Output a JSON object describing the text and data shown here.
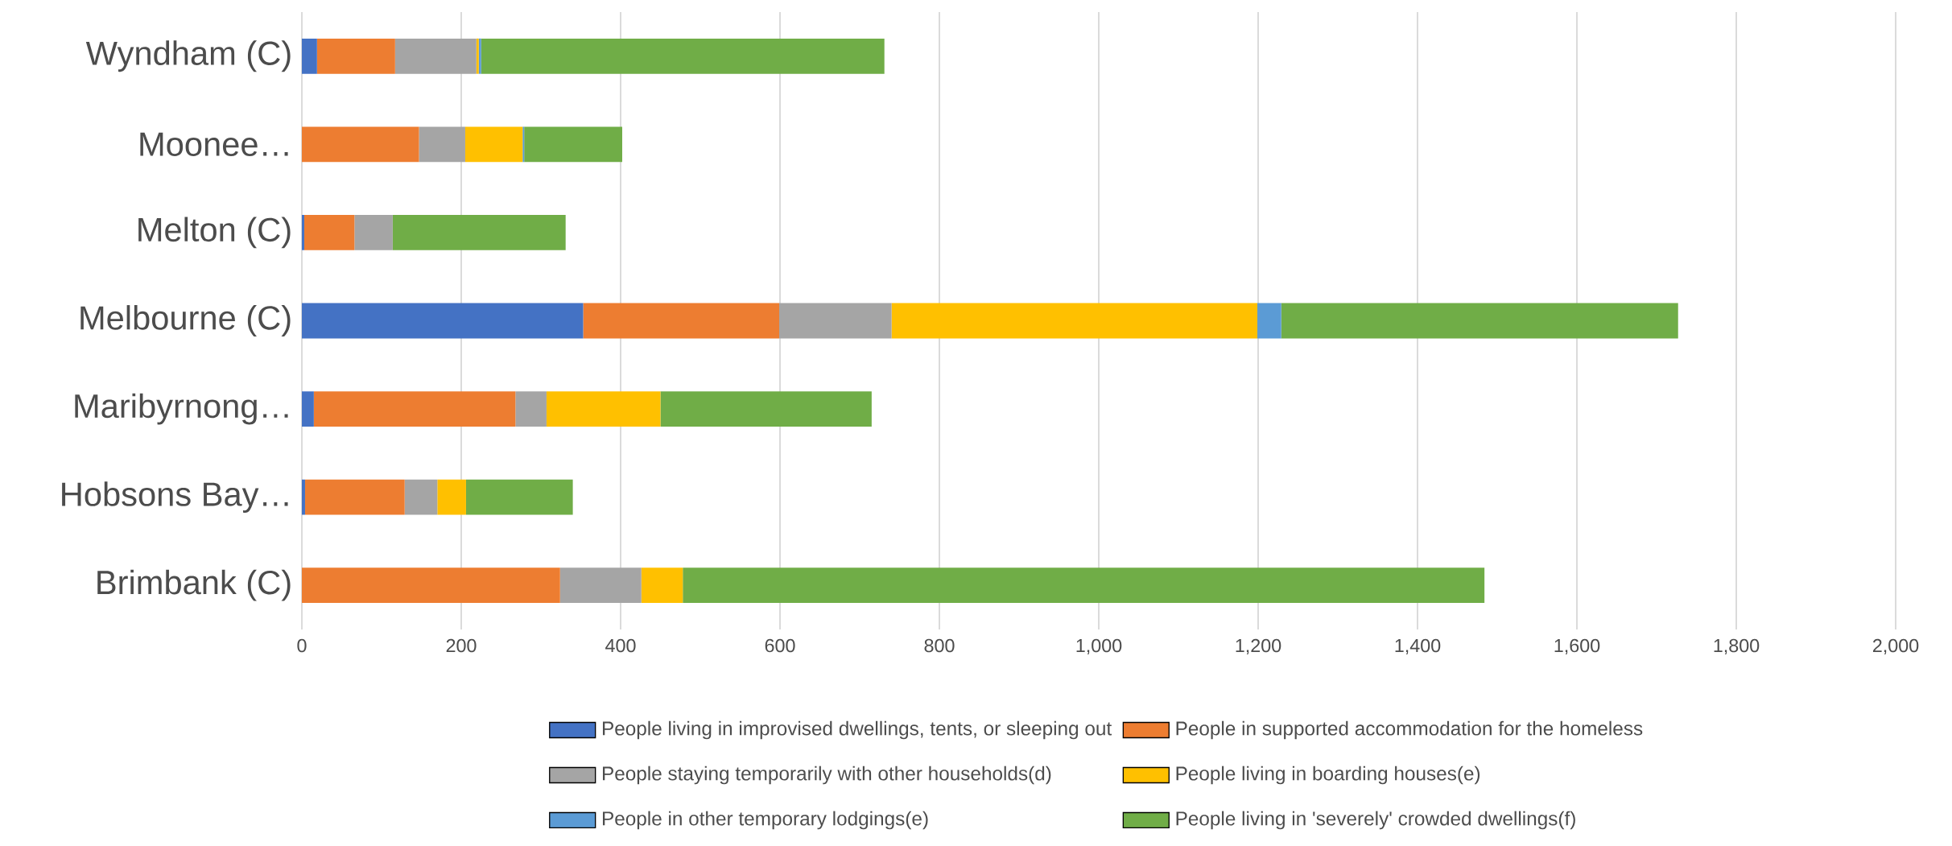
{
  "chart_data": {
    "type": "bar",
    "orientation": "horizontal",
    "stacked": true,
    "categories": [
      "Wyndham (C)",
      "Moonee…",
      "Melton (C)",
      "Melbourne (C)",
      "Maribyrnong…",
      "Hobsons Bay…",
      "Brimbank (C)"
    ],
    "series": [
      {
        "name": "People living in improvised dwellings, tents, or sleeping out",
        "color": "#4472c4",
        "values": [
          19,
          0,
          3,
          353,
          15,
          4,
          0
        ]
      },
      {
        "name": "People in supported accommodation for the homeless",
        "color": "#ed7d31",
        "values": [
          98,
          147,
          63,
          246,
          253,
          125,
          324
        ]
      },
      {
        "name": "People staying temporarily with other households(d)",
        "color": "#a5a5a5",
        "values": [
          102,
          58,
          48,
          141,
          39,
          41,
          102
        ]
      },
      {
        "name": "People living in boarding houses(e)",
        "color": "#ffc000",
        "values": [
          3,
          72,
          0,
          459,
          143,
          36,
          52
        ]
      },
      {
        "name": "People in other temporary lodgings(e)",
        "color": "#5b9bd5",
        "values": [
          3,
          2,
          0,
          30,
          0,
          0,
          0
        ]
      },
      {
        "name": "People living in 'severely' crowded dwellings(f)",
        "color": "#70ad47",
        "values": [
          506,
          123,
          217,
          498,
          265,
          134,
          1006
        ]
      }
    ],
    "xlim": [
      0,
      2000
    ],
    "xticks": [
      0,
      200,
      400,
      600,
      800,
      {
        "value": 1000,
        "label": "1,000"
      },
      {
        "value": 1200,
        "label": "1,200"
      },
      {
        "value": 1400,
        "label": "1,400"
      },
      {
        "value": 1600,
        "label": "1,600"
      },
      {
        "value": 1800,
        "label": "1,800"
      },
      {
        "value": 2000,
        "label": "2,000"
      }
    ],
    "grid": "x",
    "legend": "bottom"
  }
}
